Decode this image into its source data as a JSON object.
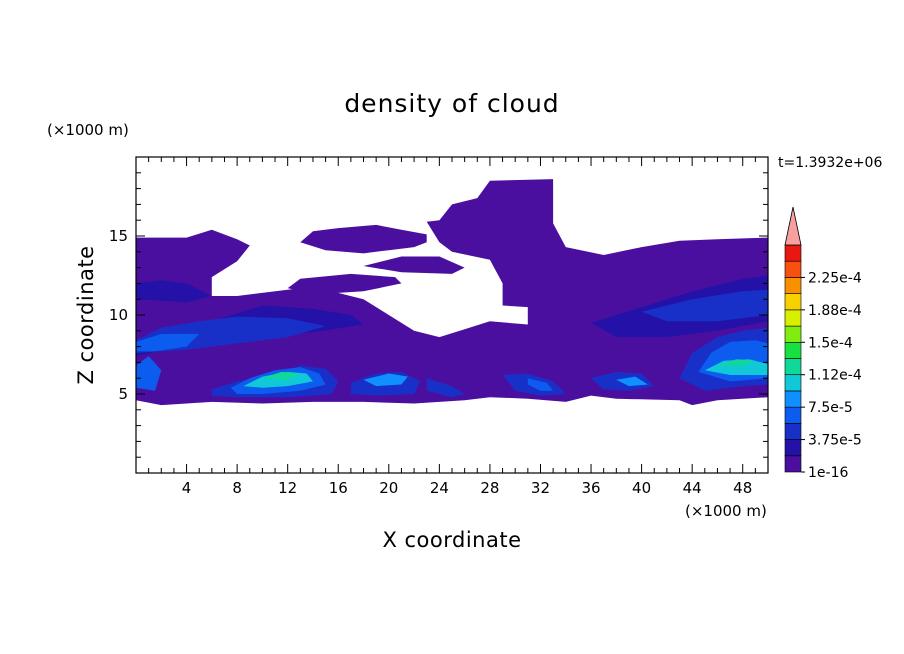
{
  "chart_data": {
    "type": "heatmap",
    "title": "density of cloud",
    "xlabel": "X coordinate",
    "ylabel": "Z coordinate",
    "x_unit": "(×1000 m)",
    "y_unit": "(×1000 m)",
    "time_label": "t=1.3932e+06",
    "xlim": [
      0,
      50
    ],
    "ylim": [
      0,
      20
    ],
    "x_ticks": [
      4,
      8,
      12,
      16,
      20,
      24,
      28,
      32,
      36,
      40,
      44,
      48
    ],
    "y_ticks": [
      5,
      10,
      15
    ],
    "colorbar": {
      "levels": [
        "1e-16",
        "3.75e-5",
        "7.5e-5",
        "1.12e-4",
        "1.5e-4",
        "1.88e-4",
        "2.25e-4"
      ],
      "colors": [
        "#4b0fa0",
        "#2412a8",
        "#1830c8",
        "#0d5cf0",
        "#1090ff",
        "#10c8d8",
        "#10d898",
        "#18e040",
        "#80ec10",
        "#d8f000",
        "#f8d000",
        "#f89000",
        "#f85010",
        "#e81810",
        "#f8a0a0"
      ],
      "extend": "max"
    },
    "cloud_regions": [
      {
        "level": 0,
        "polygon": [
          [
            0,
            4.6
          ],
          [
            2,
            4.3
          ],
          [
            6,
            4.5
          ],
          [
            10,
            4.4
          ],
          [
            14,
            4.5
          ],
          [
            18,
            4.5
          ],
          [
            22,
            4.4
          ],
          [
            26,
            4.6
          ],
          [
            28,
            4.8
          ],
          [
            31,
            4.7
          ],
          [
            34,
            4.5
          ],
          [
            36,
            4.9
          ],
          [
            38,
            4.7
          ],
          [
            43,
            4.6
          ],
          [
            44,
            4.3
          ],
          [
            46,
            4.6
          ],
          [
            50,
            4.8
          ],
          [
            50,
            14.9
          ],
          [
            46,
            14.8
          ],
          [
            43,
            14.7
          ],
          [
            40,
            14.3
          ],
          [
            37,
            13.8
          ],
          [
            34,
            14.3
          ],
          [
            33,
            15.8
          ],
          [
            33,
            18.6
          ],
          [
            28,
            18.5
          ],
          [
            27,
            17.4
          ],
          [
            25,
            17
          ],
          [
            24,
            16
          ],
          [
            23,
            15.9
          ],
          [
            24,
            14.6
          ],
          [
            25,
            14
          ],
          [
            28,
            13.5
          ],
          [
            29,
            12
          ],
          [
            29,
            10.6
          ],
          [
            31,
            10.5
          ],
          [
            31,
            9.4
          ],
          [
            28,
            9.6
          ],
          [
            26,
            9.1
          ],
          [
            24,
            8.6
          ],
          [
            22,
            9
          ],
          [
            20,
            10
          ],
          [
            18,
            11
          ],
          [
            14,
            11.8
          ],
          [
            8,
            11.2
          ],
          [
            6,
            11.2
          ],
          [
            6,
            12.4
          ],
          [
            8,
            13.4
          ],
          [
            9,
            14.4
          ],
          [
            8,
            14.8
          ],
          [
            6,
            15.4
          ],
          [
            4,
            14.9
          ],
          [
            0,
            14.9
          ]
        ]
      },
      {
        "level": 0,
        "polygon": [
          [
            13,
            14.6
          ],
          [
            15,
            14.1
          ],
          [
            18,
            13.9
          ],
          [
            20,
            14.1
          ],
          [
            22,
            14.3
          ],
          [
            23,
            14.6
          ],
          [
            23,
            15.1
          ],
          [
            21,
            15.4
          ],
          [
            19,
            15.7
          ],
          [
            16,
            15.5
          ],
          [
            14,
            15.3
          ]
        ]
      },
      {
        "level": 0,
        "polygon": [
          [
            12,
            11.7
          ],
          [
            14,
            11.3
          ],
          [
            16,
            11.4
          ],
          [
            18,
            11.5
          ],
          [
            21,
            12
          ],
          [
            20.5,
            12.4
          ],
          [
            17,
            12.6
          ],
          [
            13,
            12.3
          ]
        ]
      },
      {
        "level": 0,
        "polygon": [
          [
            18,
            13.1
          ],
          [
            21,
            12.7
          ],
          [
            25,
            12.6
          ],
          [
            26,
            13
          ],
          [
            24,
            13.7
          ],
          [
            21,
            13.7
          ]
        ]
      },
      {
        "level": 1,
        "polygon": [
          [
            0,
            8
          ],
          [
            2,
            8.8
          ],
          [
            6,
            9.6
          ],
          [
            10,
            10.6
          ],
          [
            14,
            10.4
          ],
          [
            17,
            10
          ],
          [
            18,
            9.4
          ],
          [
            14,
            8.9
          ],
          [
            10,
            8.8
          ],
          [
            6,
            8.6
          ],
          [
            3,
            7.9
          ],
          [
            0,
            7.4
          ]
        ]
      },
      {
        "level": 1,
        "polygon": [
          [
            36,
            9.5
          ],
          [
            40,
            10.5
          ],
          [
            44,
            11.5
          ],
          [
            48,
            12.3
          ],
          [
            50,
            12.5
          ],
          [
            50,
            9.6
          ],
          [
            46,
            9
          ],
          [
            42,
            8.6
          ],
          [
            38,
            8.6
          ]
        ]
      },
      {
        "level": 1,
        "polygon": [
          [
            0,
            12
          ],
          [
            2,
            12.2
          ],
          [
            4,
            12
          ],
          [
            6,
            11.2
          ],
          [
            4,
            10.8
          ],
          [
            0,
            11
          ]
        ]
      },
      {
        "level": 2,
        "polygon": [
          [
            0,
            8.4
          ],
          [
            2,
            9.2
          ],
          [
            5,
            9.6
          ],
          [
            8,
            9.9
          ],
          [
            12,
            9.8
          ],
          [
            15,
            9.3
          ],
          [
            12,
            8.6
          ],
          [
            8,
            8.2
          ],
          [
            4,
            7.8
          ],
          [
            0,
            7.6
          ]
        ]
      },
      {
        "level": 2,
        "polygon": [
          [
            40,
            10.2
          ],
          [
            44,
            11
          ],
          [
            48,
            11.5
          ],
          [
            50,
            11.6
          ],
          [
            50,
            10
          ],
          [
            46,
            9.6
          ],
          [
            42,
            9.6
          ]
        ]
      },
      {
        "level": 3,
        "polygon": [
          [
            0,
            8.3
          ],
          [
            2,
            8.8
          ],
          [
            5,
            8.8
          ],
          [
            4,
            8
          ],
          [
            1.5,
            7.7
          ],
          [
            0,
            7.7
          ]
        ]
      },
      {
        "level": 3,
        "polygon": [
          [
            0,
            6.8
          ],
          [
            1,
            7.4
          ],
          [
            2,
            6.5
          ],
          [
            1.5,
            5.2
          ],
          [
            0,
            5.4
          ]
        ]
      },
      {
        "level": 2,
        "polygon": [
          [
            6,
            5.3
          ],
          [
            8,
            5.8
          ],
          [
            11,
            6.2
          ],
          [
            13,
            6.8
          ],
          [
            15,
            6.6
          ],
          [
            16,
            5.8
          ],
          [
            15.5,
            5
          ],
          [
            12,
            4.8
          ],
          [
            8,
            4.8
          ],
          [
            6,
            4.9
          ]
        ]
      },
      {
        "level": 3,
        "polygon": [
          [
            7.5,
            5.4
          ],
          [
            9,
            6
          ],
          [
            11,
            6.5
          ],
          [
            13,
            6.7
          ],
          [
            14.5,
            6.3
          ],
          [
            15,
            5.6
          ],
          [
            13,
            5.2
          ],
          [
            10,
            5
          ],
          [
            8,
            5
          ]
        ]
      },
      {
        "level": 5,
        "polygon": [
          [
            8.5,
            5.5
          ],
          [
            10,
            6.1
          ],
          [
            12,
            6.4
          ],
          [
            13.5,
            6.3
          ],
          [
            14,
            5.8
          ],
          [
            12,
            5.5
          ],
          [
            10,
            5.4
          ]
        ]
      },
      {
        "level": 6,
        "polygon": [
          [
            10,
            6
          ],
          [
            11.5,
            6.4
          ],
          [
            13,
            6.3
          ],
          [
            12,
            5.9
          ]
        ]
      },
      {
        "level": 2,
        "polygon": [
          [
            17,
            5.7
          ],
          [
            19,
            6.3
          ],
          [
            21,
            6.4
          ],
          [
            22.5,
            5.8
          ],
          [
            22,
            5
          ],
          [
            19,
            4.9
          ],
          [
            17,
            5
          ]
        ]
      },
      {
        "level": 4,
        "polygon": [
          [
            18,
            5.9
          ],
          [
            20,
            6.3
          ],
          [
            21.5,
            6.1
          ],
          [
            21,
            5.6
          ],
          [
            19,
            5.5
          ]
        ]
      },
      {
        "level": 2,
        "polygon": [
          [
            23,
            6
          ],
          [
            25,
            5.5
          ],
          [
            26,
            5
          ],
          [
            25,
            4.8
          ],
          [
            23,
            5.2
          ]
        ]
      },
      {
        "level": 2,
        "polygon": [
          [
            29,
            6.2
          ],
          [
            31,
            6.3
          ],
          [
            33,
            5.8
          ],
          [
            34,
            5
          ],
          [
            32,
            4.9
          ],
          [
            30,
            5.2
          ]
        ]
      },
      {
        "level": 3,
        "polygon": [
          [
            31,
            6
          ],
          [
            32.5,
            5.7
          ],
          [
            33,
            5.2
          ],
          [
            32,
            5.2
          ],
          [
            31,
            5.6
          ]
        ]
      },
      {
        "level": 2,
        "polygon": [
          [
            36,
            6
          ],
          [
            38,
            6.4
          ],
          [
            40,
            6.3
          ],
          [
            41,
            5.5
          ],
          [
            39,
            5.2
          ],
          [
            37,
            5.3
          ]
        ]
      },
      {
        "level": 4,
        "polygon": [
          [
            38,
            5.9
          ],
          [
            39.5,
            6.1
          ],
          [
            40.5,
            5.6
          ],
          [
            39,
            5.5
          ]
        ]
      },
      {
        "level": 2,
        "polygon": [
          [
            43,
            6
          ],
          [
            44,
            7.6
          ],
          [
            46,
            8.6
          ],
          [
            48,
            9
          ],
          [
            50,
            9.2
          ],
          [
            50,
            5.6
          ],
          [
            48,
            5.5
          ],
          [
            45,
            5.2
          ]
        ]
      },
      {
        "level": 3,
        "polygon": [
          [
            44.5,
            6.4
          ],
          [
            45.5,
            7.6
          ],
          [
            47,
            8.3
          ],
          [
            49,
            8.4
          ],
          [
            50,
            8.2
          ],
          [
            50,
            6
          ],
          [
            47,
            5.8
          ]
        ]
      },
      {
        "level": 5,
        "polygon": [
          [
            45,
            6.5
          ],
          [
            46.5,
            7.1
          ],
          [
            48.5,
            7.2
          ],
          [
            50,
            6.9
          ],
          [
            50,
            6.2
          ],
          [
            47,
            6.2
          ]
        ]
      },
      {
        "level": 6,
        "polygon": [
          [
            46,
            6.8
          ],
          [
            47.5,
            7.2
          ],
          [
            49,
            7.1
          ],
          [
            48,
            6.8
          ]
        ]
      }
    ]
  }
}
